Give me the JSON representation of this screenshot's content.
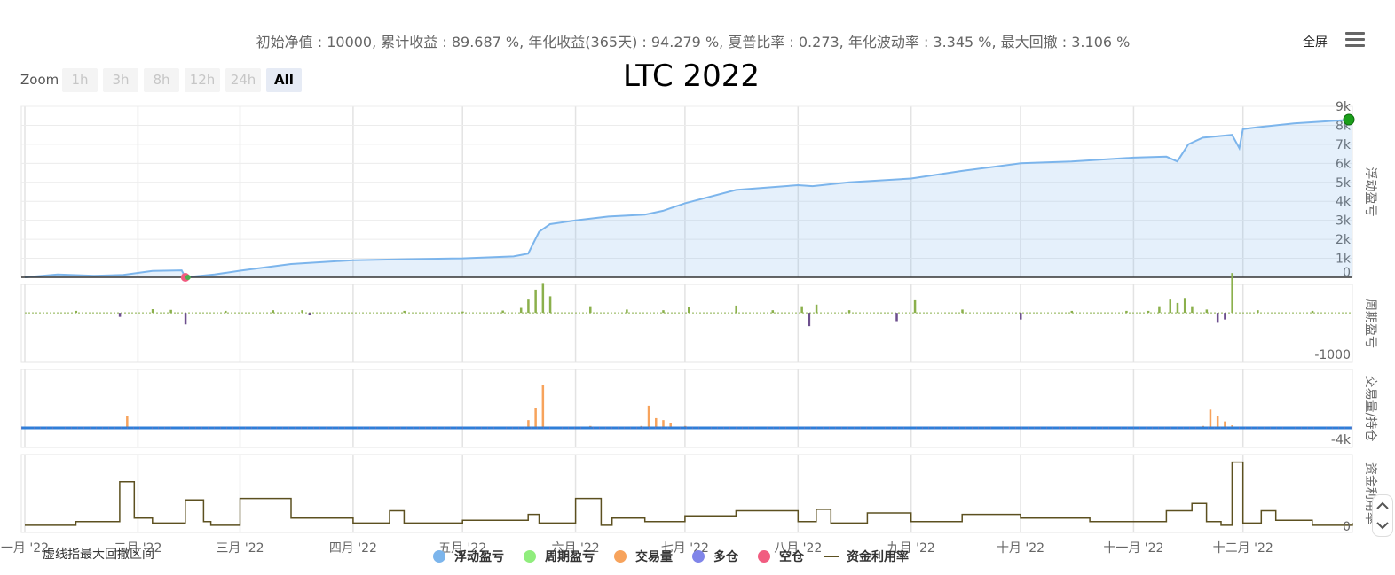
{
  "header": {
    "stats": "初始净值 : 10000, 累计收益 : 89.687 %, 年化收益(365天) : 94.279 %, 夏普比率 : 0.273, 年化波动率 : 3.345 %, 最大回撤 : 3.106 %",
    "fullscreen_label": "全屏",
    "menu_icon": "hamburger-menu-icon"
  },
  "zoom": {
    "label": "Zoom",
    "buttons": [
      "1h",
      "3h",
      "8h",
      "12h",
      "24h",
      "All"
    ],
    "active": "All"
  },
  "footnote": "虚线指最大回撤区间",
  "chart_data": {
    "type": "line",
    "title": "LTC 2022",
    "x_axis": {
      "type": "datetime",
      "range": [
        "2022-01-01",
        "2022-12-31"
      ],
      "tick_labels": [
        "一月 '22",
        "二月 '22",
        "三月 '22",
        "四月 '22",
        "五月 '22",
        "六月 '22",
        "七月 '22",
        "八月 '22",
        "九月 '22",
        "十月 '22",
        "十一月 '22",
        "十二月 '22"
      ]
    },
    "grid": true,
    "legend": {
      "placement": "bottom-center",
      "entries": [
        {
          "name": "浮动盈亏",
          "color": "#7cb5ec",
          "symbol": "dot"
        },
        {
          "name": "周期盈亏",
          "color": "#90ed7d",
          "symbol": "dot"
        },
        {
          "name": "交易量",
          "color": "#f7a35c",
          "symbol": "dot"
        },
        {
          "name": "多仓",
          "color": "#8085e9",
          "symbol": "dot"
        },
        {
          "name": "空仓",
          "color": "#f15c80",
          "symbol": "dot"
        },
        {
          "name": "资金利用率",
          "color": "#5c5020",
          "symbol": "line"
        }
      ]
    },
    "panels": [
      {
        "name": "浮动盈亏",
        "ylabel": "浮动盈亏",
        "ylim": [
          0,
          9000
        ],
        "tick_labels": [
          "0",
          "1k",
          "2k",
          "3k",
          "4k",
          "5k",
          "6k",
          "7k",
          "8k",
          "9k"
        ],
        "series": [
          {
            "name": "浮动盈亏",
            "type": "area",
            "color": "#7cb5ec",
            "x": [
              "2022-01-01",
              "2022-01-10",
              "2022-01-20",
              "2022-01-28",
              "2022-02-05",
              "2022-02-13",
              "2022-02-14",
              "2022-02-22",
              "2022-03-01",
              "2022-03-15",
              "2022-04-01",
              "2022-04-15",
              "2022-05-01",
              "2022-05-15",
              "2022-05-19",
              "2022-05-22",
              "2022-05-25",
              "2022-06-01",
              "2022-06-10",
              "2022-06-20",
              "2022-06-25",
              "2022-07-01",
              "2022-07-15",
              "2022-08-01",
              "2022-08-05",
              "2022-08-15",
              "2022-09-01",
              "2022-09-15",
              "2022-10-01",
              "2022-10-15",
              "2022-11-01",
              "2022-11-10",
              "2022-11-13",
              "2022-11-16",
              "2022-11-20",
              "2022-11-28",
              "2022-11-30",
              "2022-12-01",
              "2022-12-05",
              "2022-12-15",
              "2022-12-31"
            ],
            "y": [
              0,
              150,
              80,
              130,
              340,
              370,
              0,
              150,
              350,
              700,
              900,
              950,
              1000,
              1100,
              1250,
              2400,
              2800,
              3000,
              3200,
              3300,
              3500,
              3900,
              4600,
              4850,
              4800,
              5000,
              5200,
              5600,
              6000,
              6100,
              6300,
              6350,
              6100,
              7000,
              7350,
              7500,
              6800,
              7800,
              7900,
              8100,
              8300
            ]
          }
        ],
        "markers": [
          {
            "date": "2022-02-14",
            "y": 0,
            "colors": [
              "#f15c80",
              "#4caf50"
            ]
          },
          {
            "date": "2022-12-31",
            "y": 8300,
            "colors": [
              "#1a9e1a"
            ]
          }
        ]
      },
      {
        "name": "周期盈亏",
        "ylabel": "周期盈亏",
        "tick_labels": [
          "-1000"
        ],
        "ylim": [
          -1000,
          1600
        ],
        "series": [
          {
            "name": "周期盈亏",
            "type": "bar",
            "color_positive": "#8bb04c",
            "color_negative": "#6d4f8e",
            "x": [
              "2022-01-15",
              "2022-01-27",
              "2022-02-05",
              "2022-02-10",
              "2022-02-14",
              "2022-02-25",
              "2022-03-10",
              "2022-03-18",
              "2022-03-20",
              "2022-04-15",
              "2022-05-01",
              "2022-05-12",
              "2022-05-17",
              "2022-05-19",
              "2022-05-21",
              "2022-05-23",
              "2022-05-25",
              "2022-06-05",
              "2022-06-15",
              "2022-06-25",
              "2022-07-02",
              "2022-07-15",
              "2022-07-25",
              "2022-08-02",
              "2022-08-04",
              "2022-08-06",
              "2022-08-15",
              "2022-08-28",
              "2022-09-02",
              "2022-09-15",
              "2022-10-01",
              "2022-10-15",
              "2022-10-30",
              "2022-11-05",
              "2022-11-08",
              "2022-11-11",
              "2022-11-13",
              "2022-11-15",
              "2022-11-17",
              "2022-11-21",
              "2022-11-24",
              "2022-11-26",
              "2022-11-28",
              "2022-12-05",
              "2022-12-20"
            ],
            "y": [
              60,
              -120,
              110,
              90,
              -350,
              60,
              80,
              80,
              -60,
              60,
              40,
              70,
              150,
              400,
              700,
              900,
              500,
              200,
              100,
              80,
              180,
              220,
              80,
              200,
              -400,
              250,
              80,
              -250,
              380,
              100,
              -200,
              60,
              60,
              60,
              200,
              400,
              300,
              450,
              200,
              100,
              -300,
              -200,
              1200,
              80,
              60
            ]
          }
        ]
      },
      {
        "name": "交易量/持仓",
        "ylabel": "交易量/持仓",
        "tick_labels": [
          "-4k"
        ],
        "ylim": [
          -4000,
          8000
        ],
        "series": [
          {
            "name": "交易量",
            "type": "bar",
            "color": "#f7a35c",
            "x": [
              "2022-01-29",
              "2022-02-10",
              "2022-03-01",
              "2022-04-01",
              "2022-05-19",
              "2022-05-21",
              "2022-05-23",
              "2022-06-05",
              "2022-06-19",
              "2022-06-21",
              "2022-06-23",
              "2022-06-25",
              "2022-06-27",
              "2022-07-01",
              "2022-09-15",
              "2022-11-20",
              "2022-11-22",
              "2022-11-24",
              "2022-11-26",
              "2022-11-28"
            ],
            "y": [
              1800,
              200,
              200,
              150,
              1200,
              3000,
              6500,
              300,
              300,
              3400,
              1500,
              1200,
              800,
              300,
              200,
              300,
              2800,
              1800,
              1000,
              400
            ]
          },
          {
            "name": "多仓",
            "type": "line",
            "color": "#2f7ed8",
            "x": [
              "2022-01-01",
              "2022-12-31"
            ],
            "y": [
              0,
              0
            ]
          },
          {
            "name": "空仓",
            "type": "line",
            "color": "#f15c80",
            "x": [
              "2022-01-01",
              "2022-12-31"
            ],
            "y": [
              0,
              0
            ]
          }
        ]
      },
      {
        "name": "资金利用率",
        "ylabel": "资金利用率",
        "tick_labels": [
          "0"
        ],
        "ylim": [
          0,
          100
        ],
        "series": [
          {
            "name": "资金利用率",
            "type": "step",
            "color": "#5c5020",
            "x": [
              "2022-01-01",
              "2022-01-15",
              "2022-01-27",
              "2022-01-31",
              "2022-02-05",
              "2022-02-14",
              "2022-02-19",
              "2022-02-21",
              "2022-03-01",
              "2022-03-15",
              "2022-04-01",
              "2022-04-11",
              "2022-04-15",
              "2022-05-01",
              "2022-05-19",
              "2022-05-22",
              "2022-06-01",
              "2022-06-08",
              "2022-06-11",
              "2022-06-20",
              "2022-07-01",
              "2022-07-15",
              "2022-08-01",
              "2022-08-06",
              "2022-08-10",
              "2022-08-20",
              "2022-09-01",
              "2022-09-15",
              "2022-10-01",
              "2022-10-20",
              "2022-11-10",
              "2022-11-17",
              "2022-11-21",
              "2022-11-25",
              "2022-11-28",
              "2022-12-01",
              "2022-12-06",
              "2022-12-10",
              "2022-12-20",
              "2022-12-31"
            ],
            "y": [
              5,
              10,
              65,
              15,
              8,
              40,
              10,
              5,
              42,
              15,
              8,
              25,
              8,
              12,
              20,
              8,
              42,
              5,
              15,
              10,
              18,
              25,
              10,
              27,
              8,
              22,
              10,
              20,
              15,
              10,
              25,
              35,
              10,
              5,
              92,
              8,
              25,
              12,
              5,
              8
            ]
          }
        ]
      }
    ]
  }
}
